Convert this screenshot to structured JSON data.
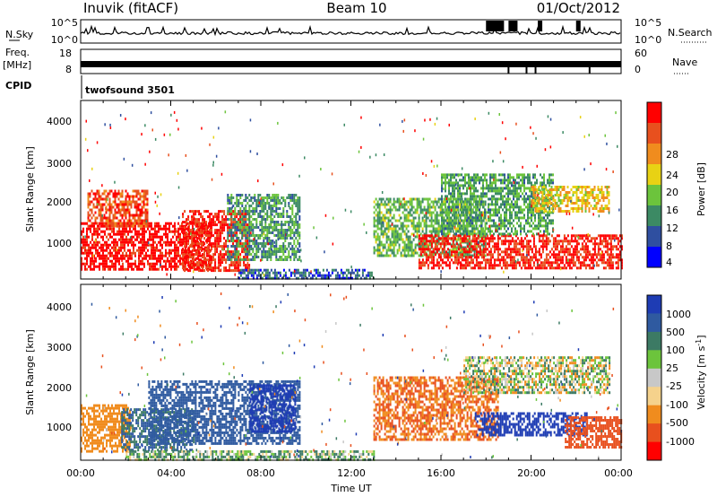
{
  "header": {
    "station": "Inuvik (fitACF)",
    "beam": "Beam 10",
    "date": "01/Oct/2012"
  },
  "top_panels": {
    "nsky_label": "N.Sky",
    "nsky_ticks": [
      "10^5",
      "10^0"
    ],
    "nsearch_label": "N.Search",
    "nsearch_ticks": [
      "10^5",
      "10^0"
    ],
    "freq_label": "Freq.",
    "freq_unit": "[MHz]",
    "freq_ticks": [
      "18",
      "8"
    ],
    "nave_label": "Nave",
    "nave_ticks": [
      "60",
      "0"
    ],
    "cpid_label": "CPID",
    "cpid_value": "twofsound 3501"
  },
  "colors": {
    "power_scale": [
      "#0000ff",
      "#2f4fa0",
      "#3c8a64",
      "#6cc43c",
      "#e8d214",
      "#f08c1e",
      "#e8501e",
      "#ff0000"
    ],
    "velocity_scale": [
      "#1e3cb4",
      "#2f5aa0",
      "#3c7a64",
      "#6cc43c",
      "#c8c8c8",
      "#f5d28c",
      "#f08c1e",
      "#e8501e",
      "#ff0000"
    ]
  },
  "chart_data": [
    {
      "type": "heatmap",
      "panel": "power",
      "ylabel": "Slant Range [km]",
      "yticks": [
        "1000",
        "2000",
        "3000",
        "4000"
      ],
      "ylim": [
        200,
        4600
      ],
      "xlim_hours": [
        0,
        24
      ],
      "colorbar_label": "Power [dB]",
      "colorbar_ticks": [
        "4",
        "8",
        "12",
        "16",
        "20",
        "24",
        "28"
      ],
      "clim": [
        0,
        30
      ],
      "regions": [
        {
          "t": [
            0.0,
            5.8
          ],
          "r": [
            450,
            1600
          ],
          "value": 29
        },
        {
          "t": [
            0.3,
            3.0
          ],
          "r": [
            1500,
            2400
          ],
          "value": 25
        },
        {
          "t": [
            4.5,
            7.5
          ],
          "r": [
            400,
            1900
          ],
          "value": 27
        },
        {
          "t": [
            6.5,
            9.7
          ],
          "r": [
            700,
            2300
          ],
          "value": 10
        },
        {
          "t": [
            7.0,
            13.0
          ],
          "r": [
            200,
            450
          ],
          "value": 6
        },
        {
          "t": [
            13.0,
            18.0
          ],
          "r": [
            800,
            2200
          ],
          "value": 12
        },
        {
          "t": [
            15.0,
            24.0
          ],
          "r": [
            450,
            1300
          ],
          "value": 27
        },
        {
          "t": [
            16.0,
            21.0
          ],
          "r": [
            1300,
            2800
          ],
          "value": 11
        },
        {
          "t": [
            20.0,
            23.5
          ],
          "r": [
            1900,
            2500
          ],
          "value": 18
        }
      ]
    },
    {
      "type": "heatmap",
      "panel": "velocity",
      "ylabel": "Slant Range [km]",
      "yticks": [
        "1000",
        "2000",
        "3000",
        "4000"
      ],
      "ylim": [
        200,
        4600
      ],
      "xlabel": "Time UT",
      "xticks": [
        "00:00",
        "04:00",
        "08:00",
        "12:00",
        "16:00",
        "20:00",
        "00:00"
      ],
      "xlim_hours": [
        0,
        24
      ],
      "colorbar_label": "Velocity [m s",
      "colorbar_exponent": "-1",
      "colorbar_ticks": [
        "1000",
        "500",
        "100",
        "25",
        "-25",
        "-100",
        "-500",
        "-1000"
      ],
      "regions": [
        {
          "t": [
            0.0,
            2.2
          ],
          "r": [
            450,
            1600
          ],
          "value": -200
        },
        {
          "t": [
            1.8,
            5.0
          ],
          "r": [
            450,
            1500
          ],
          "value": 300
        },
        {
          "t": [
            3.0,
            9.7
          ],
          "r": [
            600,
            2200
          ],
          "value": 400
        },
        {
          "t": [
            7.5,
            9.5
          ],
          "r": [
            900,
            2100
          ],
          "value": 900
        },
        {
          "t": [
            2.0,
            13.0
          ],
          "r": [
            200,
            450
          ],
          "value": 60
        },
        {
          "t": [
            13.0,
            18.5
          ],
          "r": [
            700,
            2300
          ],
          "value": -300
        },
        {
          "t": [
            17.5,
            22.5
          ],
          "r": [
            800,
            1400
          ],
          "value": 1100
        },
        {
          "t": [
            21.5,
            24.0
          ],
          "r": [
            500,
            1300
          ],
          "value": -400
        },
        {
          "t": [
            17.0,
            23.5
          ],
          "r": [
            1900,
            2800
          ],
          "value": 0
        }
      ]
    }
  ]
}
